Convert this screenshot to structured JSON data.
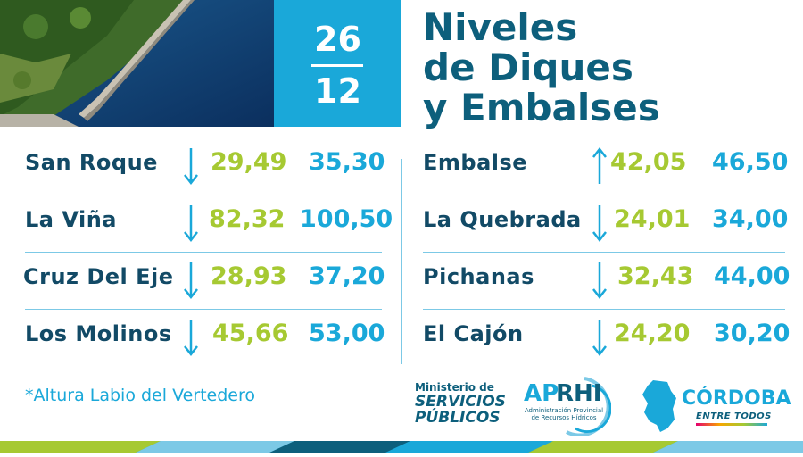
{
  "date": {
    "day": "26",
    "month": "12"
  },
  "title": {
    "line1": "Niveles",
    "line2": "de Diques",
    "line3": "y Embalses"
  },
  "colors": {
    "accent_blue": "#1aa8d9",
    "dark_blue": "#0d5f7c",
    "lime_green": "#a6c932"
  },
  "left_rows": [
    {
      "name": "San Roque",
      "trend": "down",
      "value1": "29,49",
      "value2": "35,30"
    },
    {
      "name": "La Viña",
      "trend": "down",
      "value1": "82,32",
      "value2": "100,50"
    },
    {
      "name": "Cruz Del Eje",
      "trend": "down",
      "value1": "28,93",
      "value2": "37,20"
    },
    {
      "name": "Los Molinos",
      "trend": "down",
      "value1": "45,66",
      "value2": "53,00"
    }
  ],
  "right_rows": [
    {
      "name": "Embalse",
      "trend": "up",
      "value1": "42,05",
      "value2": "46,50"
    },
    {
      "name": "La Quebrada",
      "trend": "down",
      "value1": "24,01",
      "value2": "34,00"
    },
    {
      "name": "Pichanas",
      "trend": "down",
      "value1": "32,43",
      "value2": "44,00"
    },
    {
      "name": "El Cajón",
      "trend": "down",
      "value1": "24,20",
      "value2": "30,20"
    }
  ],
  "footnote": "*Altura Labio del Vertedero",
  "logos": {
    "ministerio": {
      "line1": "Ministerio de",
      "line2": "SERVICIOS",
      "line3": "PÚBLICOS"
    },
    "aprhi": {
      "ap": "AP",
      "rhi": "RHI",
      "subtitle": "Administración Provincial de Recursos Hídricos"
    },
    "cordoba": {
      "name": "CÓRDOBA",
      "tagline": "ENTRE TODOS"
    }
  }
}
